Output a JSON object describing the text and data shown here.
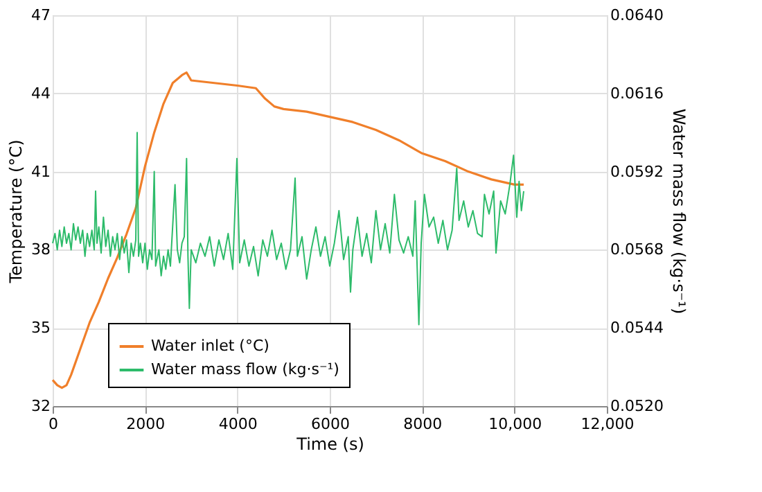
{
  "chart_data": {
    "type": "line",
    "xlabel": "Time (s)",
    "ylabel": "Temperature (°C)",
    "y2label": "Water mass flow (kg·s⁻¹)",
    "xlim": [
      0,
      12000
    ],
    "xticks": [
      0,
      2000,
      4000,
      6000,
      8000,
      {
        "value": 10000,
        "label": "10,000"
      },
      {
        "value": 12000,
        "label": "12,000"
      }
    ],
    "ylim": [
      32,
      47
    ],
    "yticks": [
      32,
      35,
      38,
      41,
      44,
      47
    ],
    "y2lim": [
      0.052,
      0.064
    ],
    "y2ticks": [
      {
        "value": 0.052,
        "label": "0.0520"
      },
      {
        "value": 0.0544,
        "label": "0.0544"
      },
      {
        "value": 0.0568,
        "label": "0.0568"
      },
      {
        "value": 0.0592,
        "label": "0.0592"
      },
      {
        "value": 0.0616,
        "label": "0.0616"
      },
      {
        "value": 0.064,
        "label": "0.0640"
      }
    ],
    "grid": true,
    "legend": "bottom",
    "line_style": "solid",
    "series": [
      {
        "name": "Water inlet (°C)",
        "color": "#f07f2a",
        "x": [
          0,
          100,
          200,
          300,
          400,
          600,
          800,
          1000,
          1200,
          1400,
          1600,
          1800,
          2000,
          2200,
          2400,
          2600,
          2800,
          2900,
          3000,
          3500,
          4000,
          4400,
          4600,
          4800,
          5000,
          5500,
          6000,
          6500,
          7000,
          7500,
          7900,
          8000,
          8500,
          9000,
          9500,
          10000,
          10200
        ],
        "values": [
          33.0,
          32.8,
          32.7,
          32.8,
          33.2,
          34.2,
          35.2,
          36.0,
          36.9,
          37.7,
          38.6,
          39.6,
          41.2,
          42.5,
          43.6,
          44.4,
          44.7,
          44.8,
          44.5,
          44.4,
          44.3,
          44.2,
          43.8,
          43.5,
          43.4,
          43.3,
          43.1,
          42.9,
          42.6,
          42.2,
          41.8,
          41.7,
          41.4,
          41.0,
          40.7,
          40.5,
          40.5
        ]
      },
      {
        "name": "Water mass flow (kg·s⁻¹)",
        "color": "#2dbb6a",
        "axis": "y2",
        "x": [
          0,
          50,
          100,
          150,
          200,
          250,
          300,
          350,
          400,
          450,
          500,
          550,
          600,
          650,
          700,
          750,
          800,
          850,
          900,
          930,
          960,
          1000,
          1050,
          1100,
          1150,
          1200,
          1250,
          1300,
          1350,
          1400,
          1450,
          1500,
          1550,
          1600,
          1650,
          1700,
          1750,
          1800,
          1830,
          1860,
          1900,
          1950,
          2000,
          2050,
          2100,
          2150,
          2200,
          2230,
          2300,
          2350,
          2400,
          2450,
          2500,
          2550,
          2650,
          2700,
          2750,
          2800,
          2850,
          2900,
          2930,
          2960,
          3000,
          3100,
          3200,
          3300,
          3400,
          3500,
          3600,
          3700,
          3800,
          3900,
          3990,
          4050,
          4150,
          4250,
          4350,
          4450,
          4550,
          4650,
          4750,
          4850,
          4950,
          5050,
          5150,
          5250,
          5300,
          5400,
          5500,
          5600,
          5700,
          5800,
          5900,
          6000,
          6100,
          6200,
          6300,
          6400,
          6450,
          6500,
          6600,
          6700,
          6800,
          6900,
          7000,
          7100,
          7200,
          7300,
          7400,
          7500,
          7600,
          7700,
          7800,
          7850,
          7930,
          7980,
          8050,
          8150,
          8250,
          8350,
          8450,
          8550,
          8650,
          8750,
          8800,
          8900,
          9000,
          9100,
          9200,
          9300,
          9350,
          9450,
          9550,
          9600,
          9700,
          9800,
          9900,
          9980,
          10050,
          10100,
          10150,
          10200
        ],
        "values": [
          0.057,
          0.0573,
          0.0568,
          0.0574,
          0.0569,
          0.0575,
          0.057,
          0.0573,
          0.0568,
          0.0576,
          0.0571,
          0.0575,
          0.057,
          0.0574,
          0.0566,
          0.0573,
          0.0569,
          0.0574,
          0.0568,
          0.0586,
          0.057,
          0.0575,
          0.0567,
          0.0578,
          0.0569,
          0.0574,
          0.0566,
          0.0572,
          0.0568,
          0.0573,
          0.0565,
          0.0572,
          0.0567,
          0.0571,
          0.0561,
          0.057,
          0.0566,
          0.0571,
          0.0604,
          0.0566,
          0.057,
          0.0564,
          0.057,
          0.0562,
          0.0568,
          0.0565,
          0.0592,
          0.0563,
          0.0568,
          0.056,
          0.0566,
          0.0562,
          0.0568,
          0.0563,
          0.0588,
          0.0568,
          0.0564,
          0.057,
          0.0572,
          0.0596,
          0.0566,
          0.055,
          0.0568,
          0.0564,
          0.057,
          0.0566,
          0.0572,
          0.0563,
          0.0571,
          0.0565,
          0.0573,
          0.0562,
          0.0596,
          0.0564,
          0.0571,
          0.0563,
          0.0569,
          0.056,
          0.0571,
          0.0566,
          0.0574,
          0.0565,
          0.057,
          0.0562,
          0.0568,
          0.059,
          0.0566,
          0.0572,
          0.0559,
          0.0568,
          0.0575,
          0.0566,
          0.0572,
          0.0563,
          0.057,
          0.058,
          0.0565,
          0.0572,
          0.0555,
          0.0568,
          0.0578,
          0.0566,
          0.0573,
          0.0564,
          0.058,
          0.0568,
          0.0576,
          0.0567,
          0.0585,
          0.0571,
          0.0567,
          0.0572,
          0.0566,
          0.0583,
          0.0545,
          0.057,
          0.0585,
          0.0575,
          0.0578,
          0.057,
          0.0577,
          0.0568,
          0.0574,
          0.0593,
          0.0577,
          0.0583,
          0.0575,
          0.058,
          0.0573,
          0.0572,
          0.0585,
          0.0579,
          0.0586,
          0.0567,
          0.0583,
          0.0579,
          0.0588,
          0.0597,
          0.0578,
          0.0589,
          0.058,
          0.0586
        ]
      }
    ]
  }
}
